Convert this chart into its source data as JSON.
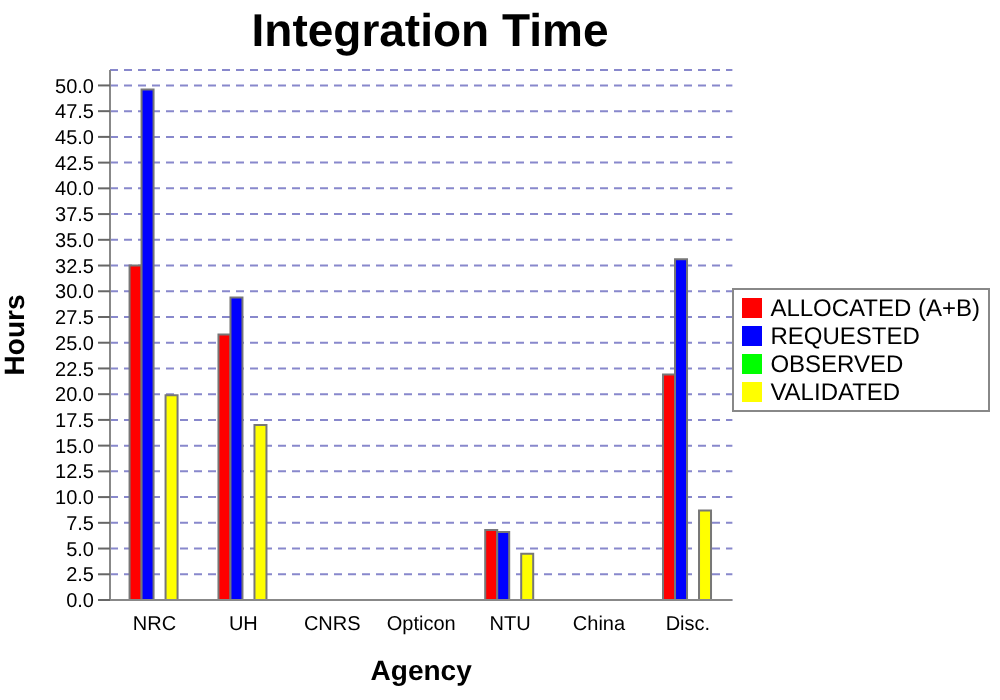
{
  "chart_data": {
    "type": "bar",
    "title": "Integration Time",
    "xlabel": "Agency",
    "ylabel": "Hours",
    "categories": [
      "NRC",
      "UH",
      "CNRS",
      "Opticon",
      "NTU",
      "China",
      "Disc."
    ],
    "series": [
      {
        "name": "ALLOCATED (A+B)",
        "color": "#ff0000",
        "values": [
          32.5,
          25.8,
          0,
          0,
          6.8,
          0,
          21.9
        ]
      },
      {
        "name": "REQUESTED",
        "color": "#0000ff",
        "values": [
          49.6,
          29.4,
          0,
          0,
          6.6,
          0,
          33.1
        ]
      },
      {
        "name": "OBSERVED",
        "color": "#00ff00",
        "values": [
          0,
          0,
          0,
          0,
          0,
          0,
          0
        ]
      },
      {
        "name": "VALIDATED",
        "color": "#ffff00",
        "values": [
          19.9,
          17.0,
          0,
          0,
          4.5,
          0,
          8.7
        ]
      }
    ],
    "ylim": [
      0,
      51.5
    ],
    "yticks": [
      {
        "value": 0,
        "label": "0.0"
      },
      {
        "value": 2.5,
        "label": "2.5"
      },
      {
        "value": 5,
        "label": "5.0"
      },
      {
        "value": 7.5,
        "label": "7.5"
      },
      {
        "value": 10,
        "label": "10.0"
      },
      {
        "value": 12.5,
        "label": "12.5"
      },
      {
        "value": 15,
        "label": "15.0"
      },
      {
        "value": 17.5,
        "label": "17.5"
      },
      {
        "value": 20,
        "label": "20.0"
      },
      {
        "value": 22.5,
        "label": "22.5"
      },
      {
        "value": 25,
        "label": "25.0"
      },
      {
        "value": 27.5,
        "label": "27.5"
      },
      {
        "value": 30,
        "label": "30.0"
      },
      {
        "value": 32.5,
        "label": "32.5"
      },
      {
        "value": 35,
        "label": "35.0"
      },
      {
        "value": 37.5,
        "label": "37.5"
      },
      {
        "value": 40,
        "label": "40.0"
      },
      {
        "value": 42.5,
        "label": "42.5"
      },
      {
        "value": 45,
        "label": "45.0"
      },
      {
        "value": 47.5,
        "label": "47.5"
      },
      {
        "value": 50,
        "label": "50.0"
      }
    ],
    "grid": "y",
    "legend": "right"
  }
}
